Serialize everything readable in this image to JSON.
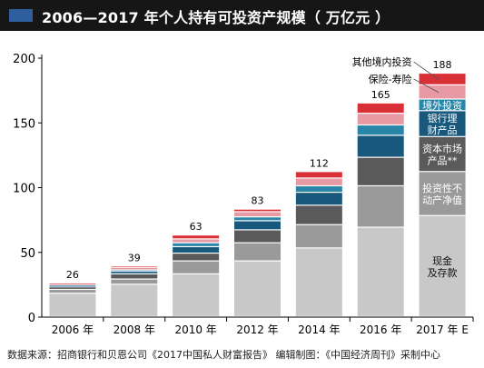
{
  "title": "2006—2017 年个人持有可投资产规模（ 万亿元 ）",
  "source_note": "数据来源：招商银行和贝恩公司《2017中国私人财富报告》    编辑制图：《中国经济周刊》采制中心",
  "colors": {
    "title_bg": "#161616",
    "title_accent": "#2f5e9f",
    "cash": "#c8c8c8",
    "real_estate": "#9a9a9a",
    "capital_market": "#5a5a5a",
    "bank_wealth": "#18587c",
    "overseas": "#2a86a8",
    "insurance": "#e79aa3",
    "other": "#d92f36",
    "axis": "#000000",
    "text": "#000000"
  },
  "chart_data": {
    "type": "bar",
    "stacked": true,
    "categories": [
      "2006 年",
      "2008 年",
      "2010 年",
      "2012 年",
      "2014 年",
      "2016 年",
      "2017 年 E"
    ],
    "totals": [
      26,
      39,
      63,
      83,
      112,
      165,
      188
    ],
    "ylim": [
      0,
      200
    ],
    "yticks": [
      0,
      50,
      100,
      150,
      200
    ],
    "grid": false,
    "series": [
      {
        "key": "cash",
        "name": "现金\n及存款",
        "values": [
          18,
          25,
          33,
          43,
          53,
          69,
          78
        ]
      },
      {
        "key": "real_estate",
        "name": "投资性不\n动产净值",
        "values": [
          3,
          4,
          10,
          14,
          18,
          32,
          34
        ]
      },
      {
        "key": "capital_market",
        "name": "资本市场\n产品**",
        "values": [
          2,
          4,
          6,
          10,
          15,
          22,
          27
        ]
      },
      {
        "key": "bank_wealth",
        "name": "银行理\n财产品",
        "values": [
          1,
          2,
          5,
          7,
          10,
          17,
          20
        ]
      },
      {
        "key": "overseas",
        "name": "境外投资",
        "values": [
          0.5,
          1,
          3,
          3,
          5,
          8,
          9
        ]
      },
      {
        "key": "insurance",
        "name": "保险-寿险",
        "values": [
          1,
          2,
          3,
          4,
          6,
          9,
          11
        ]
      },
      {
        "key": "other",
        "name": "其他境内投资",
        "values": [
          0.5,
          1,
          3,
          2,
          5,
          8,
          9
        ]
      }
    ]
  }
}
